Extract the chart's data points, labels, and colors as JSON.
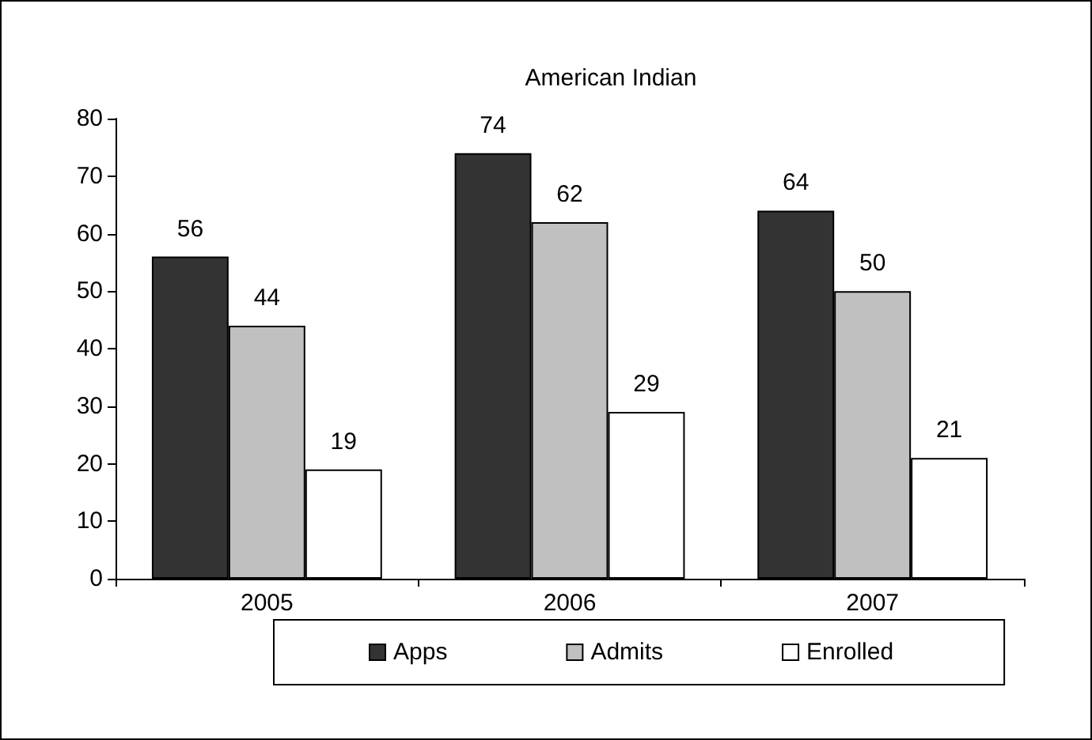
{
  "chart_data": {
    "type": "bar",
    "title": "American Indian",
    "categories": [
      "2005",
      "2006",
      "2007"
    ],
    "series": [
      {
        "name": "Apps",
        "color": "#333333",
        "values": [
          56,
          74,
          64
        ]
      },
      {
        "name": "Admits",
        "color": "#c0c0c0",
        "values": [
          44,
          62,
          50
        ]
      },
      {
        "name": "Enrolled",
        "color": "#ffffff",
        "values": [
          19,
          29,
          21
        ]
      }
    ],
    "ylim": [
      0,
      80
    ],
    "yticks": [
      0,
      10,
      20,
      30,
      40,
      50,
      60,
      70,
      80
    ],
    "grid": false,
    "legend": "bottom",
    "data_labels": true
  }
}
